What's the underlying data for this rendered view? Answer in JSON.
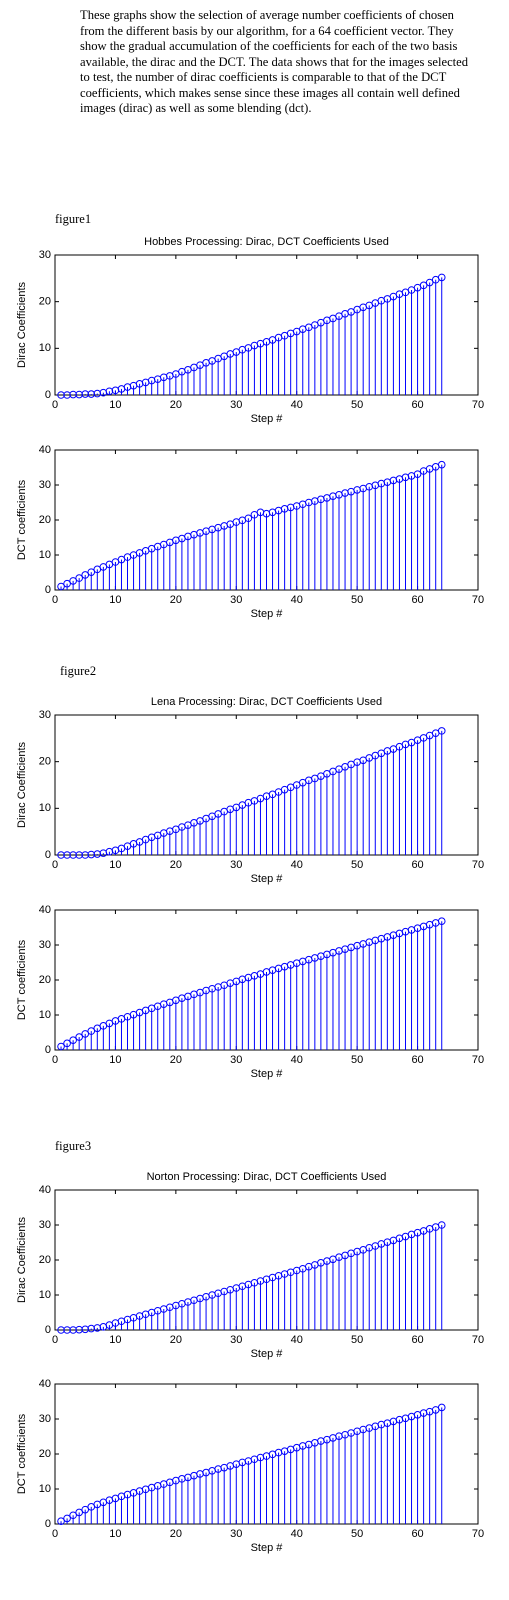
{
  "text": "These graphs show the selection of average number coefficients of chosen  from the different basis by our algorithm, for a 64 coefficient vector. They show the gradual accumulation of the coefficients for each of the two basis available, the dirac and the DCT. The data shows that for the images selected to test, the number of dirac coefficients is comparable to that of the DCT coefficients, which makes sense since these images all contain well defined images (dirac) as well as some blending (dct).",
  "figure_labels": [
    "figure1",
    "figure2",
    "figure3"
  ],
  "chart_data": [
    {
      "type": "stem",
      "title": "Hobbes Processing: Dirac, DCT Coefficients Used",
      "xlabel": "Step #",
      "ylabel": "Dirac Coefficients",
      "color": "#0000ff",
      "x": [
        1,
        2,
        3,
        4,
        5,
        6,
        7,
        8,
        9,
        10,
        11,
        12,
        13,
        14,
        15,
        16,
        17,
        18,
        19,
        20,
        21,
        22,
        23,
        24,
        25,
        26,
        27,
        28,
        29,
        30,
        31,
        32,
        33,
        34,
        35,
        36,
        37,
        38,
        39,
        40,
        41,
        42,
        43,
        44,
        45,
        46,
        47,
        48,
        49,
        50,
        51,
        52,
        53,
        54,
        55,
        56,
        57,
        58,
        59,
        60,
        61,
        62,
        63,
        64
      ],
      "values": [
        0,
        0,
        0.1,
        0.1,
        0.2,
        0.2,
        0.3,
        0.5,
        0.8,
        1.0,
        1.3,
        1.7,
        2.0,
        2.4,
        2.7,
        3.1,
        3.4,
        3.8,
        4.1,
        4.5,
        5.0,
        5.4,
        5.9,
        6.4,
        6.9,
        7.3,
        7.8,
        8.3,
        8.8,
        9.2,
        9.7,
        10.1,
        10.6,
        11.0,
        11.4,
        11.8,
        12.3,
        12.7,
        13.2,
        13.6,
        14.1,
        14.5,
        15.0,
        15.5,
        16.0,
        16.4,
        16.9,
        17.4,
        17.8,
        18.3,
        18.8,
        19.2,
        19.7,
        20.2,
        20.6,
        21.1,
        21.6,
        22.0,
        22.5,
        23.0,
        23.5,
        24.1,
        24.7,
        25.2
      ],
      "xlim": [
        0,
        70
      ],
      "ylim": [
        0,
        30
      ],
      "xticks": [
        0,
        10,
        20,
        30,
        40,
        50,
        60,
        70
      ],
      "yticks": [
        0,
        10,
        20,
        30
      ]
    },
    {
      "type": "stem",
      "xlabel": "Step #",
      "ylabel": "DCT coefficients",
      "color": "#0000ff",
      "x": [
        1,
        2,
        3,
        4,
        5,
        6,
        7,
        8,
        9,
        10,
        11,
        12,
        13,
        14,
        15,
        16,
        17,
        18,
        19,
        20,
        21,
        22,
        23,
        24,
        25,
        26,
        27,
        28,
        29,
        30,
        31,
        32,
        33,
        34,
        35,
        36,
        37,
        38,
        39,
        40,
        41,
        42,
        43,
        44,
        45,
        46,
        47,
        48,
        49,
        50,
        51,
        52,
        53,
        54,
        55,
        56,
        57,
        58,
        59,
        60,
        61,
        62,
        63,
        64
      ],
      "values": [
        1.0,
        1.8,
        2.6,
        3.4,
        4.3,
        5.1,
        5.9,
        6.6,
        7.3,
        8.0,
        8.7,
        9.4,
        10.0,
        10.6,
        11.2,
        11.8,
        12.4,
        13.0,
        13.6,
        14.2,
        14.7,
        15.3,
        15.8,
        16.3,
        16.8,
        17.3,
        17.8,
        18.3,
        18.8,
        19.4,
        19.9,
        20.5,
        21.5,
        22.2,
        21.8,
        22.2,
        22.7,
        23.2,
        23.6,
        24.0,
        24.5,
        25.0,
        25.4,
        25.9,
        26.3,
        26.8,
        27.2,
        27.7,
        28.1,
        28.6,
        29.0,
        29.5,
        29.9,
        30.4,
        30.8,
        31.3,
        31.7,
        32.2,
        32.6,
        33.1,
        34.0,
        34.6,
        35.2,
        35.8
      ],
      "xlim": [
        0,
        70
      ],
      "ylim": [
        0,
        40
      ],
      "xticks": [
        0,
        10,
        20,
        30,
        40,
        50,
        60,
        70
      ],
      "yticks": [
        0,
        10,
        20,
        30,
        40
      ]
    },
    {
      "type": "stem",
      "title": "Lena Processing: Dirac, DCT Coefficients Used",
      "xlabel": "Step #",
      "ylabel": "Dirac Coefficients",
      "color": "#0000ff",
      "x": [
        1,
        2,
        3,
        4,
        5,
        6,
        7,
        8,
        9,
        10,
        11,
        12,
        13,
        14,
        15,
        16,
        17,
        18,
        19,
        20,
        21,
        22,
        23,
        24,
        25,
        26,
        27,
        28,
        29,
        30,
        31,
        32,
        33,
        34,
        35,
        36,
        37,
        38,
        39,
        40,
        41,
        42,
        43,
        44,
        45,
        46,
        47,
        48,
        49,
        50,
        51,
        52,
        53,
        54,
        55,
        56,
        57,
        58,
        59,
        60,
        61,
        62,
        63,
        64
      ],
      "values": [
        0,
        0,
        0,
        0,
        0,
        0.1,
        0.2,
        0.4,
        0.7,
        1.0,
        1.4,
        1.9,
        2.4,
        2.8,
        3.3,
        3.8,
        4.2,
        4.7,
        5.1,
        5.5,
        6.0,
        6.4,
        6.9,
        7.3,
        7.8,
        8.3,
        8.8,
        9.3,
        9.8,
        10.2,
        10.7,
        11.2,
        11.6,
        12.1,
        12.6,
        13.0,
        13.5,
        14.0,
        14.5,
        15.0,
        15.5,
        16.0,
        16.4,
        16.9,
        17.4,
        17.9,
        18.4,
        18.9,
        19.4,
        19.9,
        20.3,
        20.8,
        21.3,
        21.8,
        22.3,
        22.7,
        23.2,
        23.7,
        24.1,
        24.6,
        25.1,
        25.6,
        26.1,
        26.6
      ],
      "xlim": [
        0,
        70
      ],
      "ylim": [
        0,
        30
      ],
      "xticks": [
        0,
        10,
        20,
        30,
        40,
        50,
        60,
        70
      ],
      "yticks": [
        0,
        10,
        20,
        30
      ]
    },
    {
      "type": "stem",
      "xlabel": "Step #",
      "ylabel": "DCT coefficients",
      "color": "#0000ff",
      "x": [
        1,
        2,
        3,
        4,
        5,
        6,
        7,
        8,
        9,
        10,
        11,
        12,
        13,
        14,
        15,
        16,
        17,
        18,
        19,
        20,
        21,
        22,
        23,
        24,
        25,
        26,
        27,
        28,
        29,
        30,
        31,
        32,
        33,
        34,
        35,
        36,
        37,
        38,
        39,
        40,
        41,
        42,
        43,
        44,
        45,
        46,
        47,
        48,
        49,
        50,
        51,
        52,
        53,
        54,
        55,
        56,
        57,
        58,
        59,
        60,
        61,
        62,
        63,
        64
      ],
      "values": [
        1.0,
        1.9,
        2.8,
        3.7,
        4.6,
        5.4,
        6.2,
        6.9,
        7.6,
        8.3,
        8.9,
        9.5,
        10.1,
        10.7,
        11.3,
        11.9,
        12.5,
        13.1,
        13.6,
        14.2,
        14.8,
        15.3,
        15.9,
        16.4,
        17.0,
        17.5,
        18.0,
        18.5,
        19.1,
        19.6,
        20.2,
        20.7,
        21.2,
        21.7,
        22.3,
        22.8,
        23.3,
        23.8,
        24.3,
        24.8,
        25.3,
        25.8,
        26.3,
        26.8,
        27.3,
        27.8,
        28.3,
        28.8,
        29.3,
        29.8,
        30.3,
        30.8,
        31.3,
        31.8,
        32.3,
        32.8,
        33.3,
        33.8,
        34.3,
        34.8,
        35.3,
        35.8,
        36.3,
        36.8
      ],
      "xlim": [
        0,
        70
      ],
      "ylim": [
        0,
        40
      ],
      "xticks": [
        0,
        10,
        20,
        30,
        40,
        50,
        60,
        70
      ],
      "yticks": [
        0,
        10,
        20,
        30,
        40
      ]
    },
    {
      "type": "stem",
      "title": "Norton Processing: Dirac, DCT Coefficients Used",
      "xlabel": "Step #",
      "ylabel": "Dirac Coefficients",
      "color": "#0000ff",
      "x": [
        1,
        2,
        3,
        4,
        5,
        6,
        7,
        8,
        9,
        10,
        11,
        12,
        13,
        14,
        15,
        16,
        17,
        18,
        19,
        20,
        21,
        22,
        23,
        24,
        25,
        26,
        27,
        28,
        29,
        30,
        31,
        32,
        33,
        34,
        35,
        36,
        37,
        38,
        39,
        40,
        41,
        42,
        43,
        44,
        45,
        46,
        47,
        48,
        49,
        50,
        51,
        52,
        53,
        54,
        55,
        56,
        57,
        58,
        59,
        60,
        61,
        62,
        63,
        64
      ],
      "values": [
        0,
        0,
        0,
        0.1,
        0.2,
        0.4,
        0.6,
        0.9,
        1.4,
        2.0,
        2.5,
        3.0,
        3.5,
        4.0,
        4.5,
        5.0,
        5.5,
        6.0,
        6.5,
        7.0,
        7.5,
        8.0,
        8.5,
        9.0,
        9.5,
        10.0,
        10.5,
        11.0,
        11.5,
        12.0,
        12.5,
        13.0,
        13.5,
        14.0,
        14.5,
        15.0,
        15.5,
        16.0,
        16.5,
        17.0,
        17.5,
        18.1,
        18.6,
        19.2,
        19.7,
        20.2,
        20.8,
        21.3,
        21.9,
        22.4,
        22.9,
        23.5,
        24.0,
        24.6,
        25.1,
        25.6,
        26.2,
        26.7,
        27.3,
        27.8,
        28.3,
        28.9,
        29.4,
        30.0
      ],
      "xlim": [
        0,
        70
      ],
      "ylim": [
        0,
        40
      ],
      "xticks": [
        0,
        10,
        20,
        30,
        40,
        50,
        60,
        70
      ],
      "yticks": [
        0,
        10,
        20,
        30,
        40
      ]
    },
    {
      "type": "stem",
      "xlabel": "Step #",
      "ylabel": "DCT coefficients",
      "color": "#0000ff",
      "x": [
        1,
        2,
        3,
        4,
        5,
        6,
        7,
        8,
        9,
        10,
        11,
        12,
        13,
        14,
        15,
        16,
        17,
        18,
        19,
        20,
        21,
        22,
        23,
        24,
        25,
        26,
        27,
        28,
        29,
        30,
        31,
        32,
        33,
        34,
        35,
        36,
        37,
        38,
        39,
        40,
        41,
        42,
        43,
        44,
        45,
        46,
        47,
        48,
        49,
        50,
        51,
        52,
        53,
        54,
        55,
        56,
        57,
        58,
        59,
        60,
        61,
        62,
        63,
        64
      ],
      "values": [
        0.8,
        1.6,
        2.5,
        3.3,
        4.1,
        4.9,
        5.6,
        6.2,
        6.8,
        7.3,
        7.9,
        8.4,
        8.9,
        9.4,
        9.9,
        10.4,
        10.9,
        11.4,
        11.9,
        12.4,
        12.9,
        13.3,
        13.8,
        14.3,
        14.7,
        15.2,
        15.7,
        16.1,
        16.6,
        17.1,
        17.6,
        18.0,
        18.5,
        19.0,
        19.4,
        19.9,
        20.4,
        20.8,
        21.3,
        21.8,
        22.3,
        22.7,
        23.2,
        23.7,
        24.1,
        24.6,
        25.1,
        25.5,
        26.0,
        26.5,
        27.0,
        27.4,
        27.9,
        28.4,
        28.8,
        29.3,
        29.8,
        30.2,
        30.7,
        31.2,
        31.7,
        32.1,
        32.6,
        33.3
      ],
      "xlim": [
        0,
        70
      ],
      "ylim": [
        0,
        40
      ],
      "xticks": [
        0,
        10,
        20,
        30,
        40,
        50,
        60,
        70
      ],
      "yticks": [
        0,
        10,
        20,
        30,
        40
      ]
    }
  ]
}
